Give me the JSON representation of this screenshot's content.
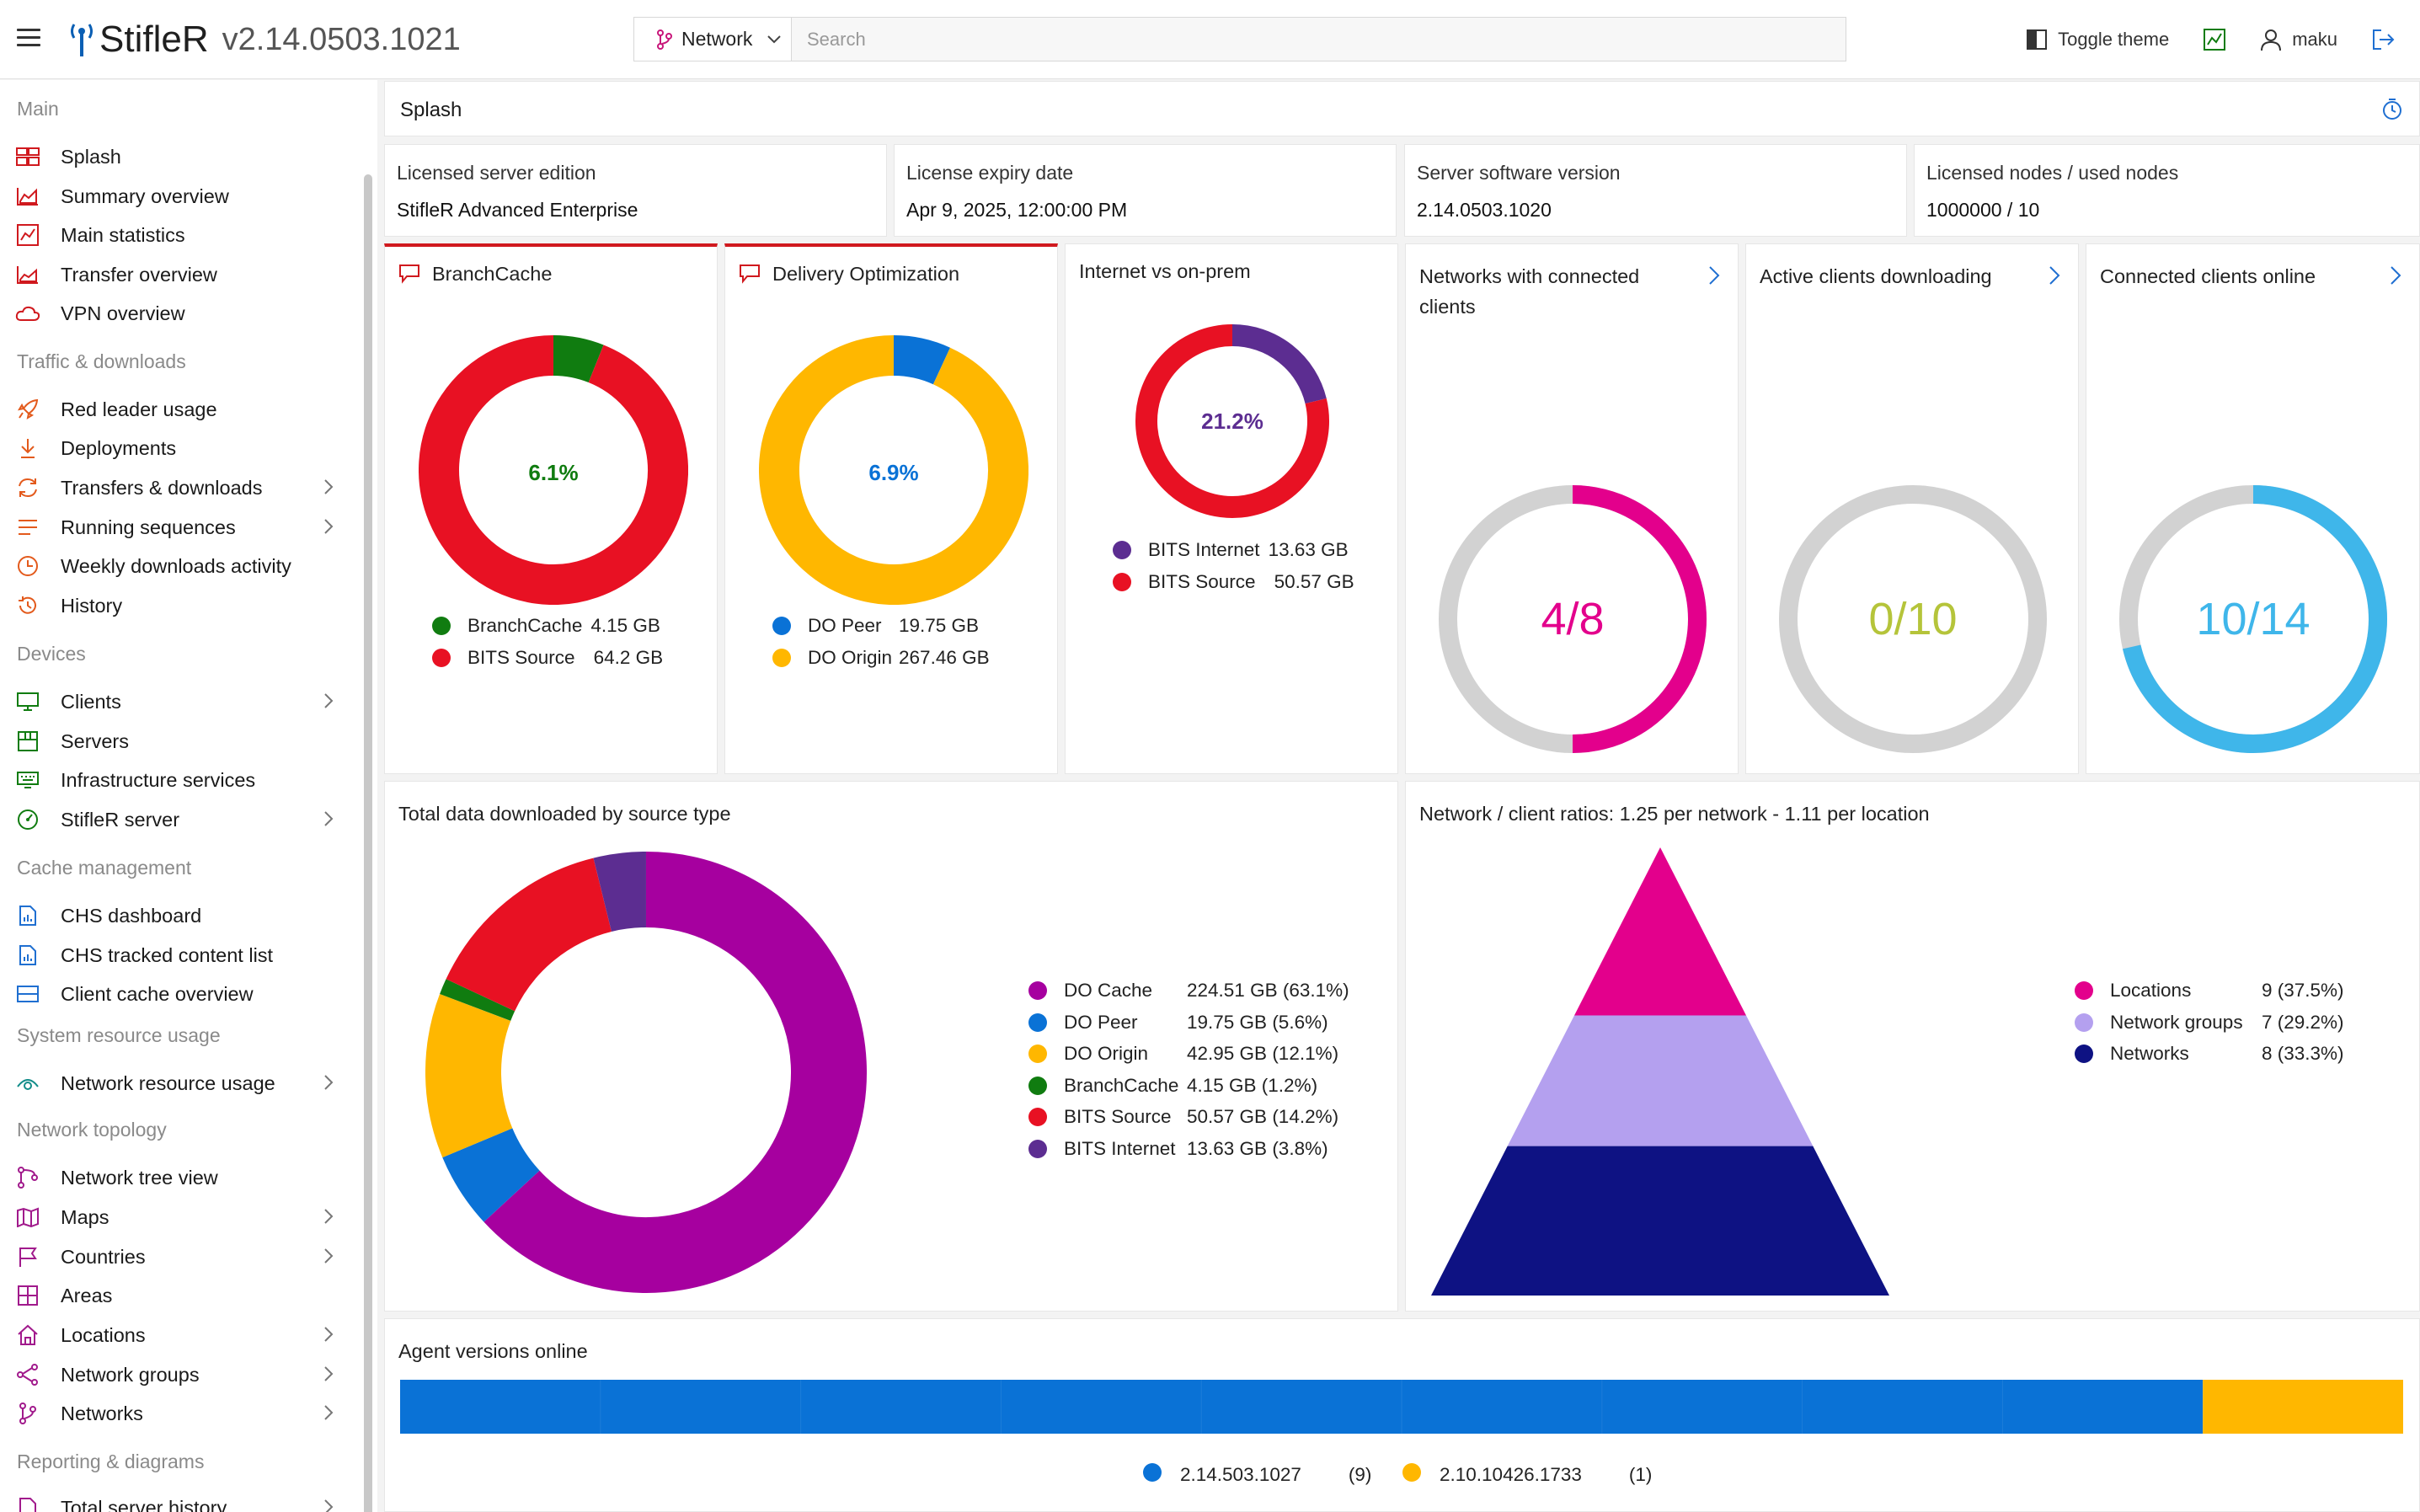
{
  "header": {
    "title": "StifleR",
    "version": "v2.14.0503.1021",
    "network_selector": "Network",
    "search_placeholder": "Search",
    "toggle_theme": "Toggle theme",
    "user": "maku"
  },
  "sidebar": {
    "sections": [
      {
        "label": "Main",
        "items": [
          {
            "label": "Splash"
          },
          {
            "label": "Summary overview"
          },
          {
            "label": "Main statistics"
          },
          {
            "label": "Transfer overview"
          },
          {
            "label": "VPN overview"
          }
        ]
      },
      {
        "label": "Traffic & downloads",
        "items": [
          {
            "label": "Red leader usage"
          },
          {
            "label": "Deployments"
          },
          {
            "label": "Transfers & downloads"
          },
          {
            "label": "Running sequences"
          },
          {
            "label": "Weekly downloads activity"
          },
          {
            "label": "History"
          }
        ]
      },
      {
        "label": "Devices",
        "items": [
          {
            "label": "Clients"
          },
          {
            "label": "Servers"
          },
          {
            "label": "Infrastructure services"
          },
          {
            "label": "StifleR server"
          }
        ]
      },
      {
        "label": "Cache management",
        "items": [
          {
            "label": "CHS dashboard"
          },
          {
            "label": "CHS tracked content list"
          },
          {
            "label": "Client cache overview"
          }
        ]
      },
      {
        "label": "System resource usage",
        "items": [
          {
            "label": "Network resource usage"
          }
        ]
      },
      {
        "label": "Network topology",
        "items": [
          {
            "label": "Network tree view"
          },
          {
            "label": "Maps"
          },
          {
            "label": "Countries"
          },
          {
            "label": "Areas"
          },
          {
            "label": "Locations"
          },
          {
            "label": "Network groups"
          },
          {
            "label": "Networks"
          }
        ]
      },
      {
        "label": "Reporting & diagrams",
        "items": [
          {
            "label": "Total server history"
          }
        ]
      }
    ]
  },
  "page": {
    "title": "Splash"
  },
  "info": [
    {
      "label": "Licensed server edition",
      "value": "StifleR Advanced Enterprise"
    },
    {
      "label": "License expiry date",
      "value": "Apr 9, 2025, 12:00:00 PM"
    },
    {
      "label": "Server software version",
      "value": "2.14.0503.1020"
    },
    {
      "label": "Licensed nodes / used nodes",
      "value": "1000000 / 10"
    }
  ],
  "colors": {
    "do_cache": "#a6009f",
    "do_peer": "#0a72d6",
    "do_origin": "#ffb700",
    "branchcache": "#107c10",
    "bits_source": "#e81123",
    "bits_internet": "#5c2d91",
    "locations": "#e3008c",
    "network_groups": "#b4a0ef",
    "networks": "#0e1283",
    "gray": "#d2d2d2",
    "cyan": "#3fb6ea",
    "olive": "#b5c43a"
  },
  "chart_data": [
    {
      "type": "pie",
      "title": "BranchCache",
      "center_label": "6.1%",
      "series": [
        {
          "name": "BranchCache",
          "value": 4.15,
          "display": "4.15 GB"
        },
        {
          "name": "BITS Source",
          "value": 64.2,
          "display": "64.2 GB"
        }
      ]
    },
    {
      "type": "pie",
      "title": "Delivery Optimization",
      "center_label": "6.9%",
      "series": [
        {
          "name": "DO Peer",
          "value": 19.75,
          "display": "19.75 GB"
        },
        {
          "name": "DO Origin",
          "value": 267.46,
          "display": "267.46 GB"
        }
      ]
    },
    {
      "type": "pie",
      "title": "Internet vs on-prem",
      "center_label": "21.2%",
      "series": [
        {
          "name": "BITS Internet",
          "value": 13.63,
          "display": "13.63 GB"
        },
        {
          "name": "BITS Source",
          "value": 50.57,
          "display": "50.57 GB"
        }
      ]
    },
    {
      "type": "pie",
      "title": "Networks with connected clients",
      "center_label": "4/8",
      "series": [
        {
          "name": "connected",
          "value": 4
        },
        {
          "name": "total",
          "value": 8
        }
      ]
    },
    {
      "type": "pie",
      "title": "Active clients downloading",
      "center_label": "0/10",
      "series": [
        {
          "name": "downloading",
          "value": 0
        },
        {
          "name": "total",
          "value": 10
        }
      ]
    },
    {
      "type": "pie",
      "title": "Connected clients online",
      "center_label": "10/14",
      "series": [
        {
          "name": "online",
          "value": 10
        },
        {
          "name": "total",
          "value": 14
        }
      ]
    },
    {
      "type": "pie",
      "title": "Total data downloaded by source type",
      "series": [
        {
          "name": "DO Cache",
          "value": 224.51,
          "display": "224.51 GB (63.1%)"
        },
        {
          "name": "DO Peer",
          "value": 19.75,
          "display": "19.75 GB (5.6%)"
        },
        {
          "name": "DO Origin",
          "value": 42.95,
          "display": "42.95 GB (12.1%)"
        },
        {
          "name": "BranchCache",
          "value": 4.15,
          "display": "4.15 GB (1.2%)"
        },
        {
          "name": "BITS Source",
          "value": 50.57,
          "display": "50.57 GB (14.2%)"
        },
        {
          "name": "BITS Internet",
          "value": 13.63,
          "display": "13.63 GB (3.8%)"
        }
      ]
    },
    {
      "type": "bar",
      "title": "Network / client ratios: 1.25 per network - 1.11 per location",
      "series": [
        {
          "name": "Locations",
          "value": 9,
          "display": "9 (37.5%)"
        },
        {
          "name": "Network groups",
          "value": 7,
          "display": "7 (29.2%)"
        },
        {
          "name": "Networks",
          "value": 8,
          "display": "8 (33.3%)"
        }
      ]
    },
    {
      "type": "bar",
      "title": "Agent versions online",
      "series": [
        {
          "name": "2.14.503.1027",
          "value": 9,
          "display": "(9)"
        },
        {
          "name": "2.10.10426.1733",
          "value": 1,
          "display": "(1)"
        }
      ]
    }
  ]
}
